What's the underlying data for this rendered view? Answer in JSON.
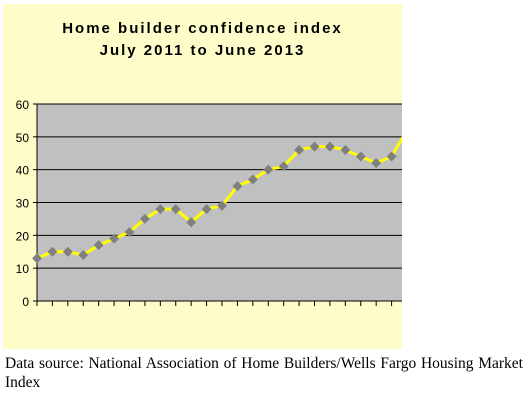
{
  "chart_data": {
    "type": "line",
    "title": [
      "Home builder confidence index",
      "July 2011 to June 2013"
    ],
    "xlabel": "",
    "ylabel": "",
    "ylim": [
      0,
      60
    ],
    "yticks": [
      0,
      10,
      20,
      30,
      40,
      50,
      60
    ],
    "grid": true,
    "legend": "none",
    "series": [
      {
        "values": [
          13,
          15,
          15,
          14,
          17,
          19,
          21,
          25,
          28,
          28,
          24,
          28,
          29,
          35,
          37,
          40,
          41,
          46,
          47,
          47,
          46,
          44,
          42,
          44,
          52
        ]
      }
    ],
    "colors": {
      "plot_background": "#c0c0c0",
      "chart_background": "#fefcc8",
      "line": "#ffff00",
      "marker": "#808080",
      "grid": "#000000"
    }
  },
  "source_note": "Data source: National Association of Home Builders/Wells Fargo Housing Market Index"
}
